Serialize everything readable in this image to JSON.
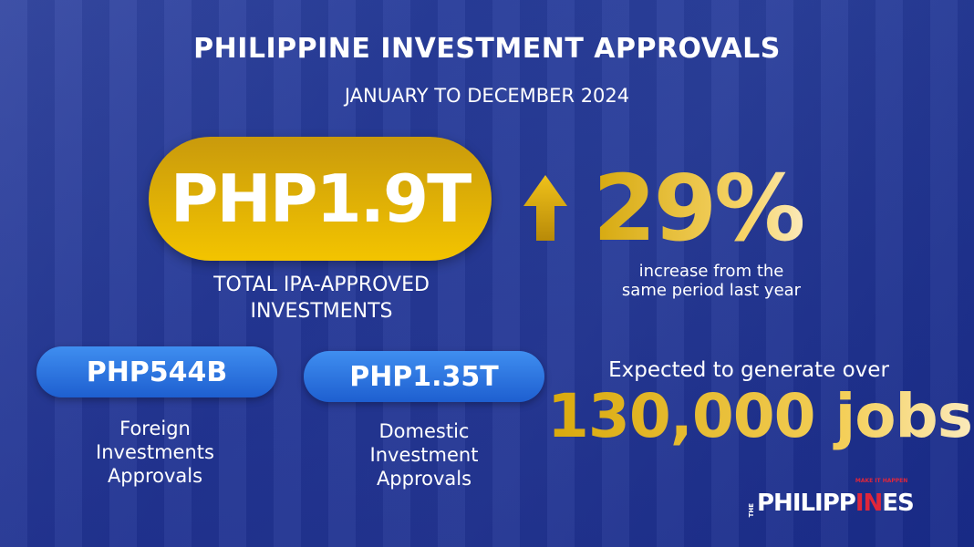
{
  "title": "PHILIPPINE INVESTMENT APPROVALS",
  "subtitle": "JANUARY TO DECEMBER 2024",
  "total": {
    "value": "PHP1.9T",
    "caption_line1": "TOTAL IPA-APPROVED",
    "caption_line2": "INVESTMENTS"
  },
  "growth": {
    "icon": "arrow-up-icon",
    "value": "29%",
    "caption_line1": "increase from the",
    "caption_line2": "same period last year"
  },
  "foreign": {
    "value": "PHP544B",
    "caption": [
      "Foreign",
      "Investments",
      "Approvals"
    ]
  },
  "domestic": {
    "value": "PHP1.35T",
    "caption": [
      "Domestic",
      "Investment",
      "Approvals"
    ]
  },
  "jobs": {
    "lead": "Expected to generate over",
    "value": "130,000 jobs"
  },
  "logo": {
    "the": "THE",
    "part1": "PHILIPP",
    "part2": "IN",
    "part3": "ES",
    "tagline": "MAKE IT HAPPEN"
  },
  "colors": {
    "gold": "#f3c400",
    "blue": "#2a3f9e",
    "pill_blue": "#1e5fd0",
    "logo_red": "#e0263a"
  }
}
